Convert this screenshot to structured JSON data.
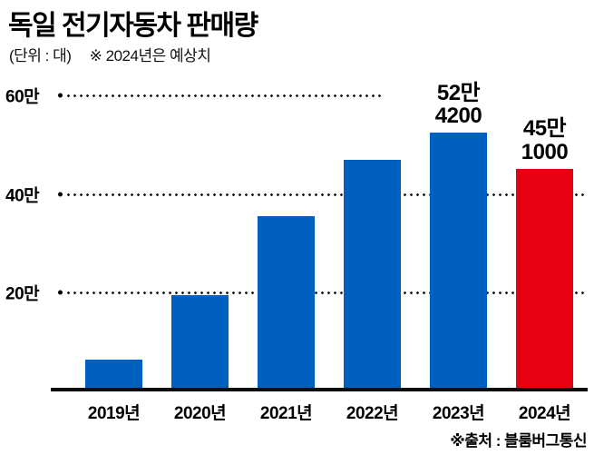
{
  "header": {
    "title": "독일 전기자동차 판매량",
    "unit": "(단위 : 대)",
    "note": "※ 2024년은 예상치"
  },
  "chart_data": {
    "type": "bar",
    "title": "독일 전기자동차 판매량",
    "unit_label": "(단위 : 대)",
    "note": "※ 2024년은 예상치",
    "categories": [
      "2019년",
      "2020년",
      "2021년",
      "2022년",
      "2023년",
      "2024년"
    ],
    "values": [
      63000,
      194000,
      355000,
      470000,
      524200,
      451000
    ],
    "bar_colors": [
      "#0060bf",
      "#0060bf",
      "#0060bf",
      "#0060bf",
      "#0060bf",
      "#e60012"
    ],
    "ylim": [
      0,
      680000
    ],
    "yticks": [
      {
        "label": "60만",
        "value": 600000,
        "line_pct": 61
      },
      {
        "label": "40만",
        "value": 400000,
        "line_pct": 100
      },
      {
        "label": "20만",
        "value": 200000,
        "line_pct": 100
      }
    ],
    "annotations": [
      {
        "category": "2023년",
        "lines": [
          "52만",
          "4200"
        ]
      },
      {
        "category": "2024년",
        "lines": [
          "45만",
          "1000"
        ]
      }
    ],
    "grid": "dotted-horizontal",
    "legend": "none",
    "xlabel": "",
    "ylabel": ""
  },
  "footer": {
    "source": "※출처 : 블룸버그통신"
  },
  "colors": {
    "bar_blue": "#0060bf",
    "bar_red": "#e60012",
    "text": "#000000"
  }
}
